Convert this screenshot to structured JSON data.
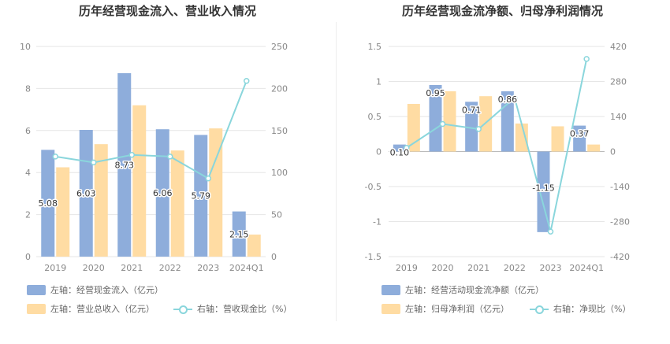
{
  "colors": {
    "bar_left": "#8eaddb",
    "bar_right": "#ffdca3",
    "line": "#8ad6dc"
  },
  "chart_data": [
    {
      "type": "bar",
      "title": "历年经营现金流入、营业收入情况",
      "categories": [
        "2019",
        "2020",
        "2021",
        "2022",
        "2023",
        "2024Q1"
      ],
      "left_axis": {
        "ylim": [
          0,
          10
        ],
        "ticks": [
          "0",
          "2",
          "4",
          "6",
          "8",
          "10"
        ]
      },
      "right_axis": {
        "ylim": [
          0,
          250
        ],
        "ticks": [
          "0",
          "50",
          "100",
          "150",
          "200",
          "250"
        ]
      },
      "series": [
        {
          "name": "左轴：经营现金流入（亿元）",
          "type": "bar",
          "axis": "left",
          "values": [
            5.08,
            6.03,
            8.73,
            6.06,
            5.79,
            2.15
          ],
          "labels": [
            "5.08",
            "6.03",
            "8.73",
            "6.06",
            "5.79",
            "2.15"
          ]
        },
        {
          "name": "左轴：营业总收入（亿元）",
          "type": "bar",
          "axis": "left",
          "values": [
            4.25,
            5.35,
            7.2,
            5.05,
            6.1,
            1.05
          ]
        },
        {
          "name": "右轴：营收现金比（%）",
          "type": "line",
          "axis": "right",
          "values": [
            119,
            112,
            121,
            119,
            93,
            209
          ]
        }
      ]
    },
    {
      "type": "bar",
      "title": "历年经营现金流净额、归母净利润情况",
      "categories": [
        "2019",
        "2020",
        "2021",
        "2022",
        "2023",
        "2024Q1"
      ],
      "left_axis": {
        "ylim": [
          -1.5,
          1.5
        ],
        "ticks": [
          "-1.5",
          "-1",
          "-0.5",
          "0",
          "0.5",
          "1",
          "1.5"
        ]
      },
      "right_axis": {
        "ylim": [
          -420,
          420
        ],
        "ticks": [
          "-420",
          "-280",
          "-140",
          "0",
          "140",
          "280",
          "420"
        ]
      },
      "series": [
        {
          "name": "左轴：经营活动现金流净额（亿元）",
          "type": "bar",
          "axis": "left",
          "values": [
            0.1,
            0.95,
            0.71,
            0.86,
            -1.15,
            0.37
          ],
          "labels": [
            "0.10",
            "0.95",
            "0.71",
            "0.86",
            "-1.15",
            "0.37"
          ]
        },
        {
          "name": "左轴：归母净利润（亿元）",
          "type": "bar",
          "axis": "left",
          "values": [
            0.68,
            0.86,
            0.79,
            0.4,
            0.36,
            0.1
          ]
        },
        {
          "name": "右轴：净现比（%）",
          "type": "line",
          "axis": "right",
          "values": [
            15,
            110,
            90,
            215,
            -320,
            370
          ]
        }
      ]
    }
  ]
}
